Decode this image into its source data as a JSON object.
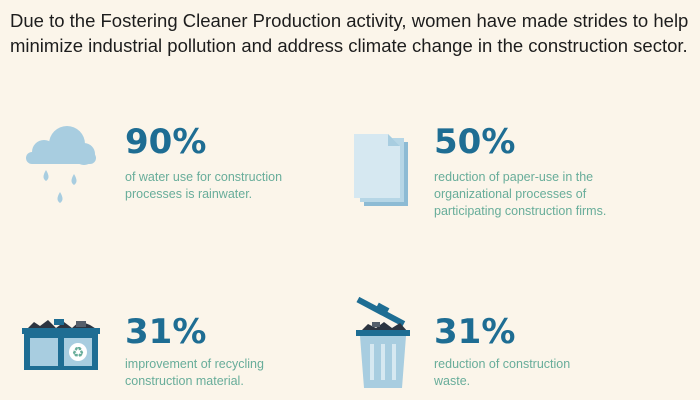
{
  "headline": "Due to the Fostering Cleaner Production activity, women have made strides to help minimize industrial pollution and address climate change in the construction sector.",
  "stats": [
    {
      "value": "90%",
      "description": "of water use for construction processes is rainwater.",
      "icon": "rain-cloud-icon"
    },
    {
      "value": "50%",
      "description": "reduction of paper-use in the organizational processes of participating construction firms.",
      "icon": "paper-stack-icon"
    },
    {
      "value": "31%",
      "description": "improvement of recycling construction material.",
      "icon": "recycling-dumpster-icon"
    },
    {
      "value": "31%",
      "description": "reduction of construction waste.",
      "icon": "trash-bin-icon"
    }
  ],
  "colors": {
    "background": "#fbf5ea",
    "headline_text": "#1d1d1d",
    "percent_text": "#1e6d93",
    "description_text": "#68ad9a",
    "icon_light_blue": "#a8cde0",
    "icon_dark_blue": "#1e6d93"
  }
}
